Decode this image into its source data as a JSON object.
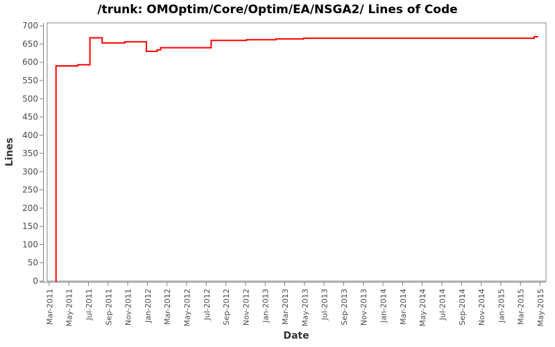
{
  "chart_data": {
    "type": "line",
    "style": "step-after",
    "title": "/trunk: OMOptim/Core/Optim/EA/NSGA2/ Lines of Code",
    "xlabel": "Date",
    "ylabel": "Lines",
    "legend": "none",
    "grid": false,
    "ylim": [
      0,
      700
    ],
    "xlim_months": [
      0,
      50
    ],
    "y_ticks": [
      0,
      50,
      100,
      150,
      200,
      250,
      300,
      350,
      400,
      450,
      500,
      550,
      600,
      650,
      700
    ],
    "x_tick_labels": [
      "Mar-2011",
      "May-2011",
      "Jul-2011",
      "Sep-2011",
      "Nov-2011",
      "Jan-2012",
      "Mar-2012",
      "May-2012",
      "Jul-2012",
      "Sep-2012",
      "Nov-2012",
      "Jan-2013",
      "Mar-2013",
      "May-2013",
      "Jul-2013",
      "Sep-2013",
      "Nov-2013",
      "Jan-2014",
      "Mar-2014",
      "May-2014",
      "Jul-2014",
      "Sep-2014",
      "Nov-2014",
      "Jan-2015",
      "Mar-2015",
      "May-2015"
    ],
    "points": [
      {
        "m": 0.65,
        "date": "late Mar 2011",
        "lines": 0
      },
      {
        "m": 0.7,
        "date": "late Mar 2011",
        "lines": 590
      },
      {
        "m": 2.9,
        "date": "mid Jun 2011",
        "lines": 593
      },
      {
        "m": 4.15,
        "date": "early Jul 2011",
        "lines": 667
      },
      {
        "m": 5.4,
        "date": "mid Aug 2011",
        "lines": 653
      },
      {
        "m": 7.7,
        "date": "late Oct 2011",
        "lines": 656
      },
      {
        "m": 9.9,
        "date": "early Jan 2012",
        "lines": 630
      },
      {
        "m": 11.0,
        "date": "early Feb 2012",
        "lines": 634
      },
      {
        "m": 11.35,
        "date": "mid Feb 2012",
        "lines": 640
      },
      {
        "m": 16.5,
        "date": "mid Jul 2012",
        "lines": 660
      },
      {
        "m": 20.1,
        "date": "early Nov 2012",
        "lines": 662
      },
      {
        "m": 23.1,
        "date": "early Feb 2013",
        "lines": 664
      },
      {
        "m": 25.9,
        "date": "late Apr 2013",
        "lines": 666
      },
      {
        "m": 49.4,
        "date": "mid Apr 2015",
        "lines": 670
      },
      {
        "m": 49.8,
        "date": "early May 2015",
        "lines": 670
      }
    ],
    "colors": {
      "series": "#ff0000",
      "frame": "#808080",
      "tick_text": "#4a4a4a",
      "axis_title_text": "#333333",
      "title_text": "#000000",
      "background": "#ffffff"
    }
  }
}
